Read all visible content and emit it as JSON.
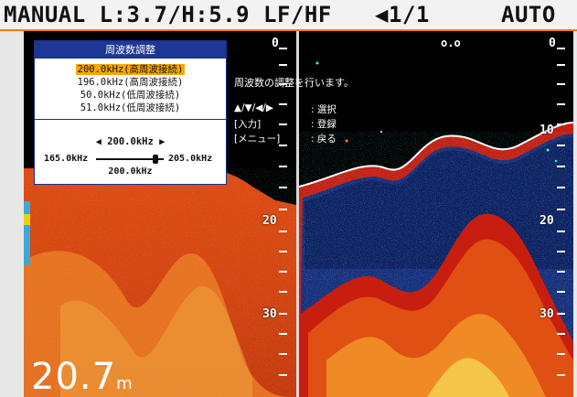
{
  "status_bar": {
    "mode": "MANUAL L:3.7/H:5.9 LF/HF",
    "page": "◀1/1",
    "gain": "AUTO"
  },
  "dialog": {
    "title": "周波数調整",
    "items": [
      {
        "label": "200.0kHz(高周波接続)",
        "selected": true
      },
      {
        "label": "196.0kHz(高周波接続)",
        "selected": false
      },
      {
        "label": "50.0kHz(低周波接続)",
        "selected": false
      },
      {
        "label": "51.0kHz(低周波接続)",
        "selected": false
      }
    ],
    "current": "◀ 200.0kHz ▶",
    "min": "165.0kHz",
    "max": "205.0kHz",
    "value": "200.0kHz",
    "slider_fraction": 0.875
  },
  "help": {
    "message": "周波数の調整を行います。",
    "rows": [
      {
        "key": "▲/▼/◀/▶",
        "sep": ":",
        "action": "選択"
      },
      {
        "key": "[入力]",
        "sep": ":",
        "action": "登録"
      },
      {
        "key": "[メニュー]",
        "sep": ":",
        "action": "戻る"
      }
    ]
  },
  "left_scale": {
    "labels": [
      "0",
      "20",
      "30"
    ]
  },
  "right_scale": {
    "labels": [
      "0",
      "10",
      "20",
      "30"
    ]
  },
  "depth": {
    "value": "20.7",
    "unit": "m"
  },
  "colors": {
    "accent": "#ff7a00",
    "dialog_title_bg": "#1e3796",
    "selected_bg": "#f5a800"
  }
}
